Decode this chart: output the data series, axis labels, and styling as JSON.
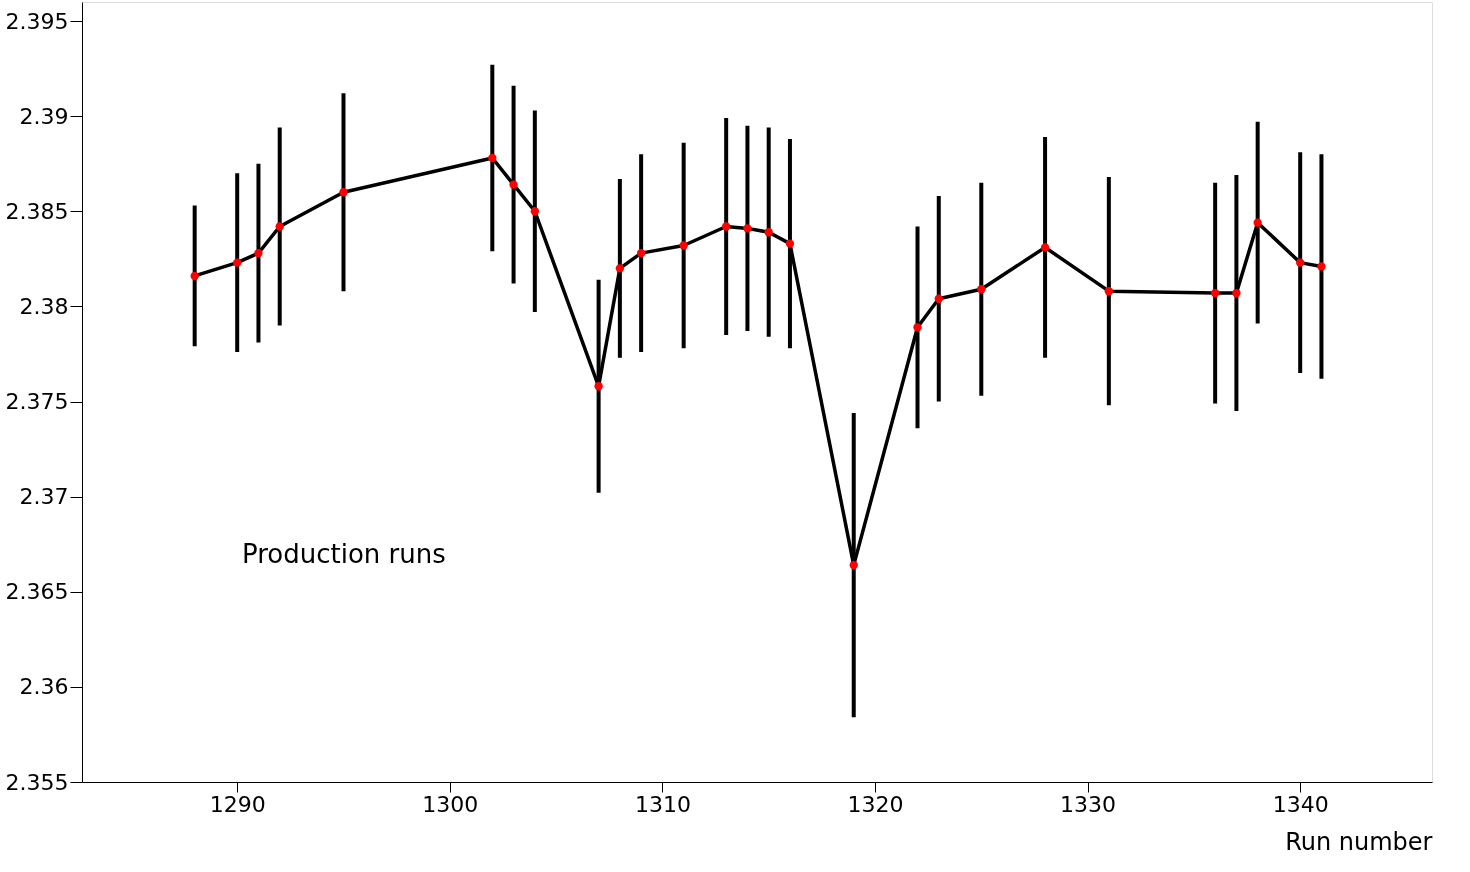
{
  "chart_data": {
    "type": "line",
    "xlabel": "Run number",
    "x": [
      1288,
      1290,
      1291,
      1292,
      1295,
      1302,
      1303,
      1304,
      1307,
      1308,
      1309,
      1311,
      1313,
      1314,
      1315,
      1316,
      1319,
      1322,
      1323,
      1325,
      1328,
      1331,
      1336,
      1337,
      1338,
      1340,
      1341
    ],
    "series": [
      {
        "color": "#000000",
        "colors": [
          "#ff0000",
          "#ff0000",
          "#ff0000",
          "#ff0000",
          "#ff0000",
          "#ff0000",
          "#ff0000",
          "#ff0000",
          "#ff0000",
          "#ff0000",
          "#ff0000",
          "#ff0000",
          "#ff0000",
          "#ff0000",
          "#ff0000",
          "#ff0000",
          "#ff0000",
          "#ff0000",
          "#ff0000",
          "#ff0000",
          "#ff0000",
          "#ff0000",
          "#ff0000",
          "#ff0000",
          "#ff0000",
          "#ff0000",
          "#ff0000"
        ],
        "values": [
          2.3816,
          2.3823,
          2.3828,
          2.3842,
          2.386,
          2.3878,
          2.3864,
          2.385,
          2.3758,
          2.382,
          2.3828,
          2.3832,
          2.3842,
          2.3841,
          2.3839,
          2.3833,
          2.3664,
          2.3789,
          2.3804,
          2.3809,
          2.3831,
          2.3808,
          2.3807,
          2.3807,
          2.3844,
          2.3823,
          2.3821
        ],
        "errors": [
          0.0037,
          0.0047,
          0.0047,
          0.0052,
          0.0052,
          0.0049,
          0.0052,
          0.0053,
          0.0056,
          0.0047,
          0.0052,
          0.0054,
          0.0057,
          0.0054,
          0.0055,
          0.0055,
          0.008,
          0.0053,
          0.0054,
          0.0056,
          0.0058,
          0.006,
          0.0058,
          0.0062,
          0.0053,
          0.0058,
          0.0059
        ]
      }
    ],
    "xlim": [
      1282.7,
      1346.2
    ],
    "xticks": [
      1290,
      1300,
      1310,
      1320,
      1330,
      1340
    ],
    "ylim": [
      2.355,
      2.396
    ],
    "yticks": [
      2.355,
      2.36,
      2.365,
      2.37,
      2.375,
      2.38,
      2.385,
      2.39,
      2.395
    ],
    "annotations": [
      "Production runs"
    ],
    "marker": "circle",
    "grid": false
  }
}
